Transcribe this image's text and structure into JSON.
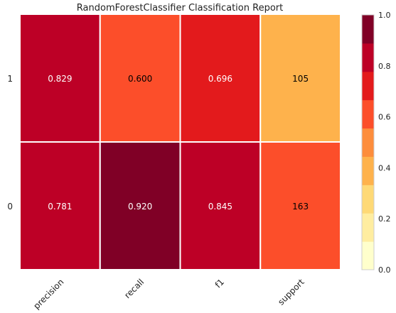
{
  "chart_data": {
    "type": "heatmap",
    "title": "RandomForestClassifier Classification Report",
    "x_categories": [
      "precision",
      "recall",
      "f1",
      "support"
    ],
    "y_categories": [
      "1",
      "0"
    ],
    "cells": [
      {
        "label": "0.829",
        "color": "#bd0026"
      },
      {
        "label": "0.600",
        "color": "#fc4e2a"
      },
      {
        "label": "0.696",
        "color": "#e31a1c"
      },
      {
        "label": "105",
        "color": "#feb24c"
      },
      {
        "label": "0.781",
        "color": "#bd0026"
      },
      {
        "label": "0.920",
        "color": "#800026"
      },
      {
        "label": "0.845",
        "color": "#bd0026"
      },
      {
        "label": "163",
        "color": "#fc4e2a"
      }
    ],
    "colorbar": {
      "range": [
        0,
        1
      ],
      "ticks": [
        "0.0",
        "0.2",
        "0.4",
        "0.6",
        "0.8",
        "1.0"
      ],
      "colors": [
        "#ffffcc",
        "#ffeda0",
        "#fed976",
        "#feb24c",
        "#fd8d3c",
        "#fc4e2a",
        "#e31a1c",
        "#bd0026",
        "#800026"
      ]
    }
  }
}
